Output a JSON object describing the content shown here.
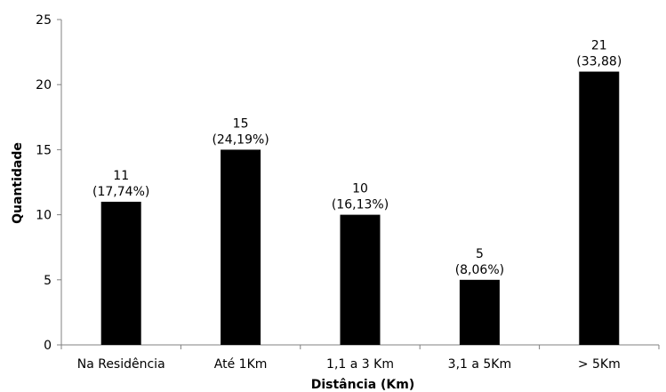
{
  "chart_data": {
    "type": "bar",
    "title": "",
    "xlabel": "Distância (Km)",
    "ylabel": "Quantidade",
    "categories": [
      "Na Residência",
      "Até 1Km",
      "1,1 a 3 Km",
      "3,1 a 5Km",
      "> 5Km"
    ],
    "values": [
      11,
      15,
      10,
      5,
      21
    ],
    "data_labels": [
      [
        "11",
        "(17,74%)"
      ],
      [
        "15",
        "(24,19%)"
      ],
      [
        "10",
        "(16,13%)"
      ],
      [
        "5",
        "(8,06%)"
      ],
      [
        "21",
        "(33,88)"
      ]
    ],
    "ylim": [
      0,
      25
    ],
    "yticks": [
      0,
      5,
      10,
      15,
      20,
      25
    ],
    "grid": false,
    "legend": "none",
    "bar_color": "#000000"
  }
}
